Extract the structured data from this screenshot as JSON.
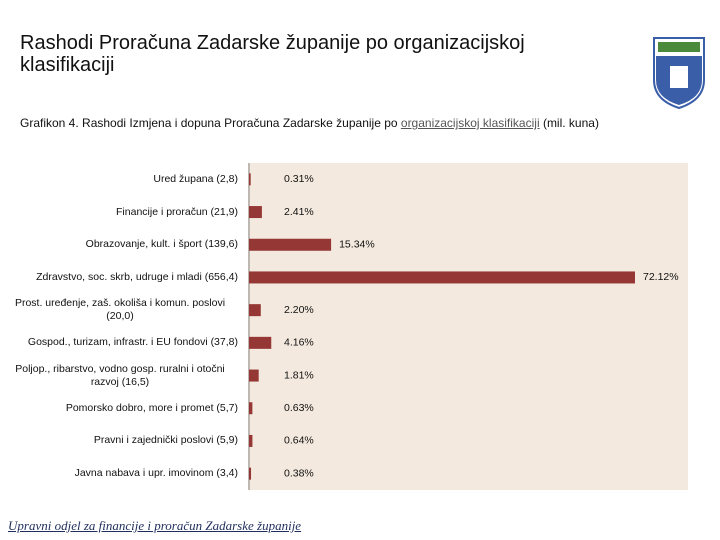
{
  "title": "Rashodi Proračuna Zadarske županije po organizacijskoj klasifikaciji",
  "footer": "Upravni odjel za financije i proračun Zadarske županije",
  "chart_data": {
    "type": "bar",
    "orientation": "horizontal",
    "subtitle": [
      "Grafikon 4. Rashodi Izmjena i dopuna Proračuna Zadarske županije po ",
      "organizacijskoj klasifikaciji",
      " (mil. kuna)"
    ],
    "categories": [
      "Ured župana (2,8)",
      "Financije i proračun (21,9)",
      "Obrazovanje, kult. i šport (139,6)",
      "Zdravstvo, soc. skrb, udruge i mladi (656,4)",
      "Prost. uređenje, zaš. okoliša i komun. poslovi (20,0)",
      "Gospod., turizam, infrastr. i EU fondovi (37,8)",
      "Poljop., ribarstvo, vodno gosp. ruralni i otočni razvoj (16,5)",
      "Pomorsko dobro, more i promet (5,7)",
      "Pravni i zajednički poslovi (5,9)",
      "Javna nabava i upr. imovinom (3,4)"
    ],
    "values": [
      0.31,
      2.41,
      15.34,
      72.12,
      2.2,
      4.16,
      1.81,
      0.63,
      0.64,
      0.38
    ],
    "value_labels": [
      "0.31%",
      "2.41%",
      "15.34%",
      "72.12%",
      "2.20%",
      "4.16%",
      "1.81%",
      "0.63%",
      "0.64%",
      "0.38%"
    ],
    "color": "#953735",
    "background": "#f3e9de"
  }
}
